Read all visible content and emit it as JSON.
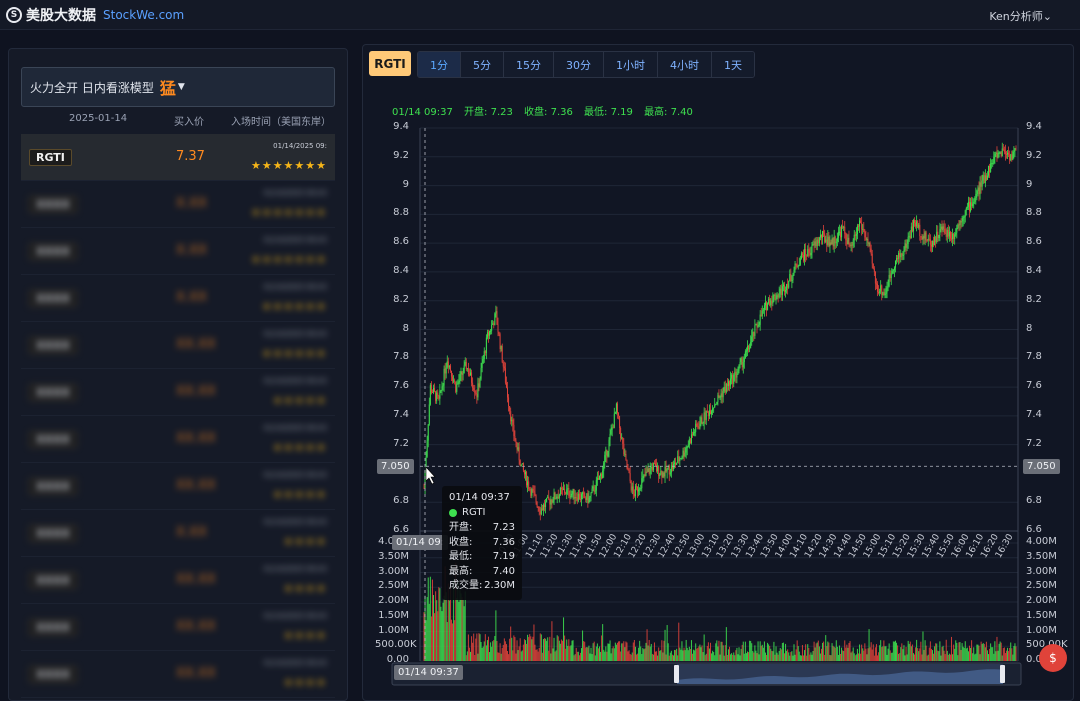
{
  "header": {
    "logo_mark": "S",
    "site_name": "美股大数据",
    "site_domain": "StockWe.com",
    "user_menu": "Ken分析师"
  },
  "left_panel": {
    "model_label": "火力全开 日内看涨模型",
    "model_tag": "猛",
    "columns": {
      "date": "2025-01-14",
      "buy_price": "买入价",
      "entry_time": "入场时间（美国东岸）"
    },
    "rows": [
      {
        "ticker": "RGTI",
        "price": "7.37",
        "time": "01/14/2025 09:",
        "stars": 7,
        "selected": true
      },
      {
        "ticker": "XXXX",
        "price": "X.XX",
        "time": "01/14/2025 09:XX",
        "stars": 7
      },
      {
        "ticker": "XXXX",
        "price": "X.XX",
        "time": "01/14/2025 09:XX",
        "stars": 7
      },
      {
        "ticker": "XXXX",
        "price": "X.XX",
        "time": "01/14/2025 09:XX",
        "stars": 6
      },
      {
        "ticker": "XXXX",
        "price": "XX.XX",
        "time": "01/14/2025 09:XX",
        "stars": 6
      },
      {
        "ticker": "XXXX",
        "price": "XX.XX",
        "time": "01/14/2025 09:XX",
        "stars": 5
      },
      {
        "ticker": "XXXX",
        "price": "XX.XX",
        "time": "01/14/2025 09:XX",
        "stars": 5
      },
      {
        "ticker": "XXXX",
        "price": "XX.XX",
        "time": "01/14/2025 09:XX",
        "stars": 5
      },
      {
        "ticker": "XXXX",
        "price": "X.XX",
        "time": "01/14/2025 09:XX",
        "stars": 4
      },
      {
        "ticker": "XXXX",
        "price": "XX.XX",
        "time": "01/14/2025 09:XX",
        "stars": 4
      },
      {
        "ticker": "XXXX",
        "price": "XX.XX",
        "time": "01/14/2025 09:XX",
        "stars": 4
      },
      {
        "ticker": "XXXX",
        "price": "XX.XX",
        "time": "01/14/2025 09:XX",
        "stars": 4
      }
    ]
  },
  "chart_panel": {
    "symbol": "RGTI",
    "tabs": [
      "1分",
      "5分",
      "15分",
      "30分",
      "1小时",
      "4小时",
      "1天"
    ],
    "active_tab": "1分",
    "ohlc": {
      "time": "01/14 09:37",
      "open_label": "开盘:",
      "open": "7.23",
      "close_label": "收盘:",
      "close": "7.36",
      "low_label": "最低:",
      "low": "7.19",
      "high_label": "最高:",
      "high": "7.40"
    },
    "crosshair_price": "7.050",
    "crosshair_time": "01/14 09:",
    "tooltip": {
      "time": "01/14 09:37",
      "symbol": "RGTI",
      "rows": [
        {
          "label": "开盘:",
          "value": "7.23"
        },
        {
          "label": "收盘:",
          "value": "7.36"
        },
        {
          "label": "最低:",
          "value": "7.19"
        },
        {
          "label": "最高:",
          "value": "7.40"
        },
        {
          "label": "成交量:",
          "value": "2.30M"
        }
      ]
    },
    "zoom_label": "01/14 09:37",
    "chat_badge": "$",
    "colors": {
      "up": "#3ee04f",
      "down": "#e0433a",
      "accent": "#ff8a1f",
      "grid": "#1f2636"
    }
  },
  "chart_data": {
    "type": "candlestick",
    "title": "",
    "price_ticks": [
      "9.4",
      "9.2",
      "9",
      "8.8",
      "8.6",
      "8.4",
      "8.2",
      "8",
      "7.8",
      "7.6",
      "7.4",
      "7.2",
      "6.8",
      "6.6"
    ],
    "ylim": [
      6.6,
      9.4
    ],
    "volume_ticks": [
      "4.00M",
      "3.50M",
      "3.00M",
      "2.50M",
      "2.00M",
      "1.50M",
      "1.00M",
      "500.00K",
      "0.00"
    ],
    "volume_ylim": [
      0,
      4000000
    ],
    "x_ticks": [
      "10:50",
      "11:00",
      "11:10",
      "11:20",
      "11:30",
      "11:40",
      "11:50",
      "12:00",
      "12:10",
      "12:20",
      "12:30",
      "12:40",
      "12:50",
      "13:00",
      "13:10",
      "13:20",
      "13:30",
      "13:40",
      "13:50",
      "14:00",
      "14:10",
      "14:20",
      "14:30",
      "14:40",
      "14:50",
      "15:00",
      "15:10",
      "15:20",
      "15:30",
      "15:40",
      "15:50",
      "16:00",
      "16:10",
      "16:20",
      "16:30"
    ],
    "close_trend": [
      [
        0,
        6.9
      ],
      [
        6,
        7.6
      ],
      [
        14,
        7.5
      ],
      [
        22,
        7.8
      ],
      [
        30,
        7.6
      ],
      [
        40,
        7.75
      ],
      [
        50,
        7.55
      ],
      [
        60,
        7.95
      ],
      [
        68,
        8.1
      ],
      [
        76,
        7.7
      ],
      [
        84,
        7.3
      ],
      [
        92,
        7.05
      ],
      [
        100,
        6.9
      ],
      [
        110,
        6.75
      ],
      [
        120,
        6.82
      ],
      [
        132,
        6.88
      ],
      [
        144,
        6.85
      ],
      [
        156,
        6.82
      ],
      [
        168,
        7.0
      ],
      [
        176,
        7.25
      ],
      [
        182,
        7.45
      ],
      [
        190,
        7.1
      ],
      [
        198,
        6.85
      ],
      [
        206,
        6.95
      ],
      [
        216,
        7.05
      ],
      [
        226,
        7.0
      ],
      [
        236,
        7.05
      ],
      [
        246,
        7.15
      ],
      [
        256,
        7.3
      ],
      [
        266,
        7.4
      ],
      [
        276,
        7.5
      ],
      [
        286,
        7.6
      ],
      [
        296,
        7.7
      ],
      [
        306,
        7.85
      ],
      [
        316,
        8.05
      ],
      [
        326,
        8.2
      ],
      [
        336,
        8.25
      ],
      [
        346,
        8.35
      ],
      [
        356,
        8.5
      ],
      [
        366,
        8.55
      ],
      [
        376,
        8.65
      ],
      [
        386,
        8.6
      ],
      [
        396,
        8.7
      ],
      [
        404,
        8.55
      ],
      [
        412,
        8.75
      ],
      [
        420,
        8.6
      ],
      [
        428,
        8.3
      ],
      [
        436,
        8.25
      ],
      [
        444,
        8.45
      ],
      [
        454,
        8.55
      ],
      [
        464,
        8.75
      ],
      [
        472,
        8.65
      ],
      [
        480,
        8.6
      ],
      [
        490,
        8.7
      ],
      [
        500,
        8.65
      ],
      [
        510,
        8.8
      ],
      [
        520,
        8.9
      ],
      [
        530,
        9.05
      ],
      [
        540,
        9.2
      ],
      [
        548,
        9.25
      ],
      [
        556,
        9.2
      ],
      [
        560,
        9.25
      ]
    ],
    "crosshair_price": 7.05
  }
}
